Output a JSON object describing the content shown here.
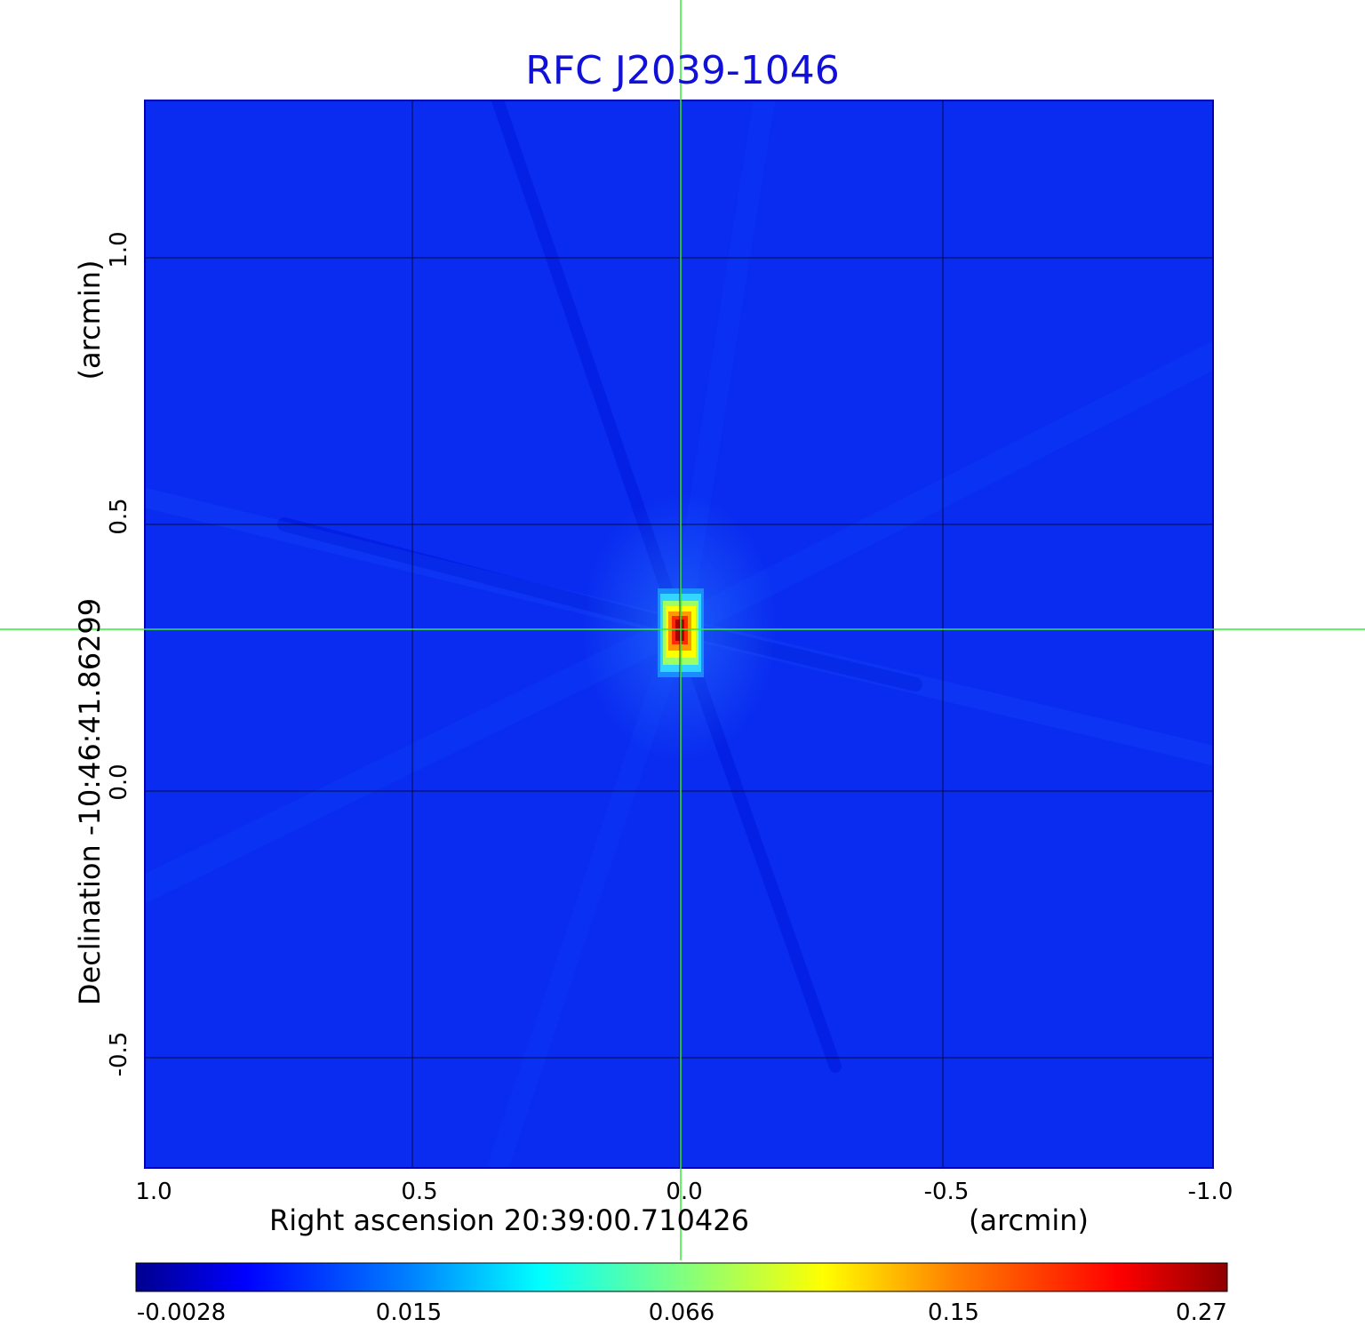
{
  "chart_data": {
    "type": "heatmap",
    "title": "RFC J2039-1046",
    "xlabel": "Right ascension  20:39:00.710426",
    "xunit": "(arcmin)",
    "ylabel": "Declination  -10:46:41.86299",
    "yunit": "(arcmin)",
    "xticks": [
      "1.0",
      "0.5",
      "0.0",
      "-0.5",
      "-1.0"
    ],
    "yticks": [
      "1.0",
      "0.5",
      "0.0",
      "-0.5"
    ],
    "xlim": [
      1.0,
      -1.0
    ],
    "ylim": [
      -0.7,
      1.3
    ],
    "grid": true,
    "crosshair": {
      "x": 0.0,
      "y": 0.3
    },
    "peak": {
      "x": 0.0,
      "y": 0.3,
      "value": 0.27
    },
    "colorbar": {
      "ticks": [
        "-0.0028",
        "0.015",
        "0.066",
        "0.15",
        "0.27"
      ],
      "colormap": "jet"
    },
    "colors": {
      "background": "#0a2cf0",
      "title": "#1010d8",
      "crosshair": "#33ee33",
      "grid": "#000000"
    }
  }
}
